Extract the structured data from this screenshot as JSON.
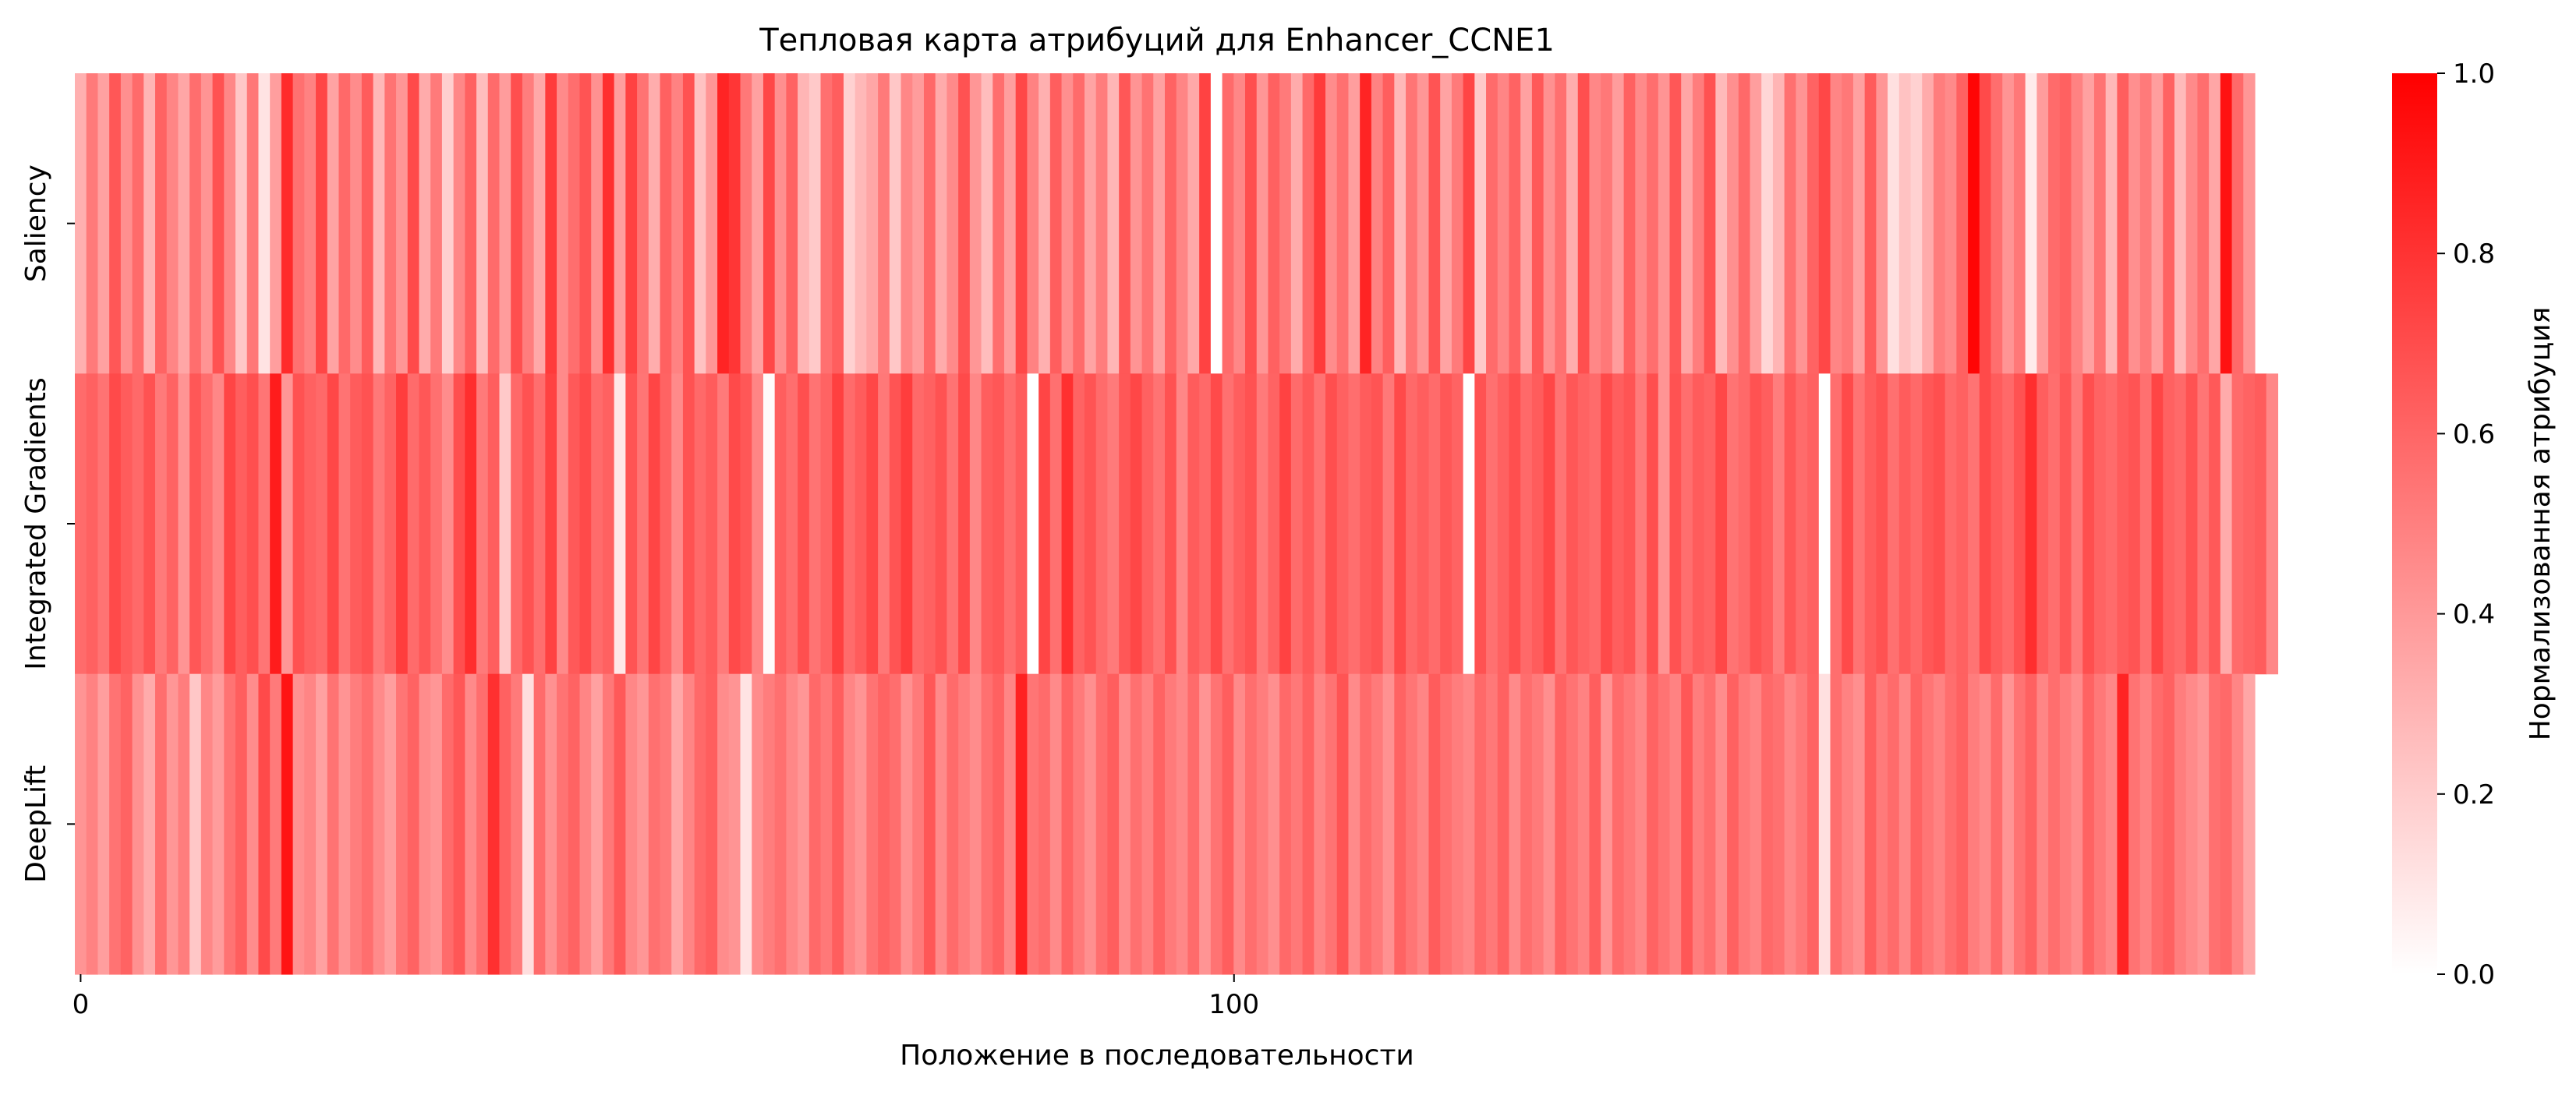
{
  "chart_data": {
    "type": "heatmap",
    "title": "Тепловая карта атрибуций для Enhancer_CCNE1",
    "xlabel": "Положение в последовательности",
    "ylabel": "",
    "rows": [
      "Saliency",
      "Integrated Gradients",
      "DeepLift"
    ],
    "x_range": [
      0,
      189
    ],
    "x_ticks": [
      0,
      100
    ],
    "x_tick_labels": [
      "0",
      "100"
    ],
    "colorbar": {
      "label": "Нормализованная атрибуция",
      "range": [
        0.0,
        1.0
      ],
      "ticks": [
        "0.0",
        "0.2",
        "0.4",
        "0.6",
        "0.8",
        "1.0"
      ],
      "color_low": "#ffffff",
      "color_high": "#ff0000"
    },
    "values": [
      [
        0.31,
        0.52,
        0.37,
        0.66,
        0.44,
        0.58,
        0.29,
        0.61,
        0.48,
        0.35,
        0.57,
        0.42,
        0.68,
        0.47,
        0.22,
        0.53,
        0.11,
        0.38,
        0.83,
        0.56,
        0.49,
        0.73,
        0.36,
        0.59,
        0.45,
        0.64,
        0.28,
        0.55,
        0.41,
        0.71,
        0.33,
        0.52,
        0.19,
        0.47,
        0.62,
        0.26,
        0.58,
        0.39,
        0.69,
        0.51,
        0.34,
        0.77,
        0.46,
        0.57,
        0.67,
        0.43,
        0.81,
        0.38,
        0.74,
        0.55,
        0.32,
        0.62,
        0.49,
        0.68,
        0.24,
        0.41,
        0.86,
        0.79,
        0.53,
        0.37,
        0.72,
        0.44,
        0.61,
        0.29,
        0.21,
        0.56,
        0.63,
        0.18,
        0.28,
        0.35,
        0.52,
        0.22,
        0.47,
        0.39,
        0.59,
        0.33,
        0.46,
        0.68,
        0.41,
        0.26,
        0.57,
        0.38,
        0.72,
        0.49,
        0.31,
        0.63,
        0.44,
        0.58,
        0.36,
        0.51,
        0.29,
        0.66,
        0.42,
        0.55,
        0.37,
        0.61,
        0.48,
        0.34,
        0.74,
        0.0,
        0.58,
        0.47,
        0.69,
        0.41,
        0.62,
        0.52,
        0.33,
        0.59,
        0.77,
        0.45,
        0.56,
        0.38,
        0.86,
        0.49,
        0.63,
        0.28,
        0.54,
        0.41,
        0.67,
        0.36,
        0.52,
        0.73,
        0.21,
        0.58,
        0.48,
        0.61,
        0.37,
        0.65,
        0.43,
        0.56,
        0.32,
        0.69,
        0.47,
        0.53,
        0.39,
        0.62,
        0.46,
        0.57,
        0.42,
        0.66,
        0.35,
        0.51,
        0.68,
        0.27,
        0.44,
        0.59,
        0.38,
        0.16,
        0.29,
        0.56,
        0.42,
        0.61,
        0.72,
        0.48,
        0.53,
        0.37,
        0.64,
        0.41,
        0.12,
        0.24,
        0.18,
        0.33,
        0.51,
        0.46,
        0.62,
        0.98,
        0.71,
        0.57,
        0.42,
        0.53,
        0.08,
        0.39,
        0.58,
        0.62,
        0.49,
        0.37,
        0.55,
        0.28,
        0.63,
        0.44,
        0.52,
        0.38,
        0.61,
        0.27,
        0.46,
        0.57,
        0.35,
        0.93,
        0.59,
        0.41
      ],
      [
        0.58,
        0.62,
        0.55,
        0.71,
        0.64,
        0.59,
        0.68,
        0.52,
        0.61,
        0.42,
        0.66,
        0.57,
        0.47,
        0.73,
        0.63,
        0.69,
        0.54,
        0.89,
        0.41,
        0.68,
        0.62,
        0.59,
        0.72,
        0.55,
        0.64,
        0.68,
        0.53,
        0.61,
        0.76,
        0.58,
        0.66,
        0.56,
        0.45,
        0.69,
        0.82,
        0.52,
        0.63,
        0.21,
        0.59,
        0.68,
        0.57,
        0.74,
        0.46,
        0.65,
        0.71,
        0.58,
        0.62,
        0.09,
        0.67,
        0.54,
        0.73,
        0.61,
        0.46,
        0.68,
        0.59,
        0.64,
        0.52,
        0.71,
        0.66,
        0.48,
        0.02,
        0.63,
        0.57,
        0.69,
        0.55,
        0.61,
        0.75,
        0.58,
        0.64,
        0.72,
        0.53,
        0.67,
        0.76,
        0.59,
        0.62,
        0.68,
        0.55,
        0.71,
        0.47,
        0.63,
        0.66,
        0.57,
        0.64,
        0.0,
        0.73,
        0.56,
        0.81,
        0.61,
        0.67,
        0.58,
        0.52,
        0.66,
        0.72,
        0.62,
        0.55,
        0.68,
        0.47,
        0.64,
        0.59,
        0.71,
        0.56,
        0.63,
        0.68,
        0.52,
        0.61,
        0.74,
        0.58,
        0.65,
        0.55,
        0.69,
        0.62,
        0.57,
        0.64,
        0.67,
        0.53,
        0.71,
        0.59,
        0.63,
        0.58,
        0.66,
        0.61,
        0.0,
        0.68,
        0.56,
        0.62,
        0.69,
        0.59,
        0.64,
        0.72,
        0.55,
        0.66,
        0.61,
        0.58,
        0.71,
        0.63,
        0.67,
        0.52,
        0.69,
        0.42,
        0.68,
        0.57,
        0.64,
        0.61,
        0.72,
        0.55,
        0.59,
        0.68,
        0.63,
        0.51,
        0.66,
        0.58,
        0.62,
        0.0,
        0.57,
        0.71,
        0.55,
        0.63,
        0.68,
        0.56,
        0.64,
        0.59,
        0.66,
        0.69,
        0.58,
        0.62,
        0.55,
        0.71,
        0.64,
        0.59,
        0.68,
        0.82,
        0.63,
        0.57,
        0.66,
        0.52,
        0.69,
        0.61,
        0.58,
        0.64,
        0.67,
        0.56,
        0.73,
        0.62,
        0.59,
        0.68,
        0.54,
        0.65,
        0.33,
        0.58,
        0.61,
        0.64,
        0.47
      ],
      [
        0.42,
        0.49,
        0.38,
        0.55,
        0.61,
        0.43,
        0.33,
        0.57,
        0.41,
        0.51,
        0.22,
        0.47,
        0.39,
        0.55,
        0.63,
        0.45,
        0.71,
        0.52,
        0.92,
        0.43,
        0.48,
        0.37,
        0.55,
        0.42,
        0.51,
        0.57,
        0.46,
        0.38,
        0.54,
        0.61,
        0.45,
        0.41,
        0.58,
        0.66,
        0.46,
        0.57,
        0.81,
        0.62,
        0.52,
        0.13,
        0.58,
        0.43,
        0.55,
        0.61,
        0.48,
        0.37,
        0.53,
        0.65,
        0.47,
        0.41,
        0.56,
        0.52,
        0.34,
        0.48,
        0.59,
        0.63,
        0.45,
        0.42,
        0.11,
        0.45,
        0.51,
        0.56,
        0.47,
        0.41,
        0.59,
        0.53,
        0.63,
        0.48,
        0.42,
        0.55,
        0.61,
        0.57,
        0.43,
        0.52,
        0.66,
        0.46,
        0.58,
        0.51,
        0.45,
        0.56,
        0.62,
        0.48,
        0.87,
        0.54,
        0.58,
        0.46,
        0.61,
        0.52,
        0.44,
        0.57,
        0.63,
        0.45,
        0.56,
        0.49,
        0.61,
        0.52,
        0.47,
        0.58,
        0.42,
        0.55,
        0.63,
        0.46,
        0.57,
        0.51,
        0.44,
        0.59,
        0.53,
        0.62,
        0.48,
        0.55,
        0.67,
        0.46,
        0.58,
        0.52,
        0.43,
        0.61,
        0.54,
        0.48,
        0.64,
        0.56,
        0.51,
        0.47,
        0.59,
        0.53,
        0.62,
        0.46,
        0.57,
        0.52,
        0.44,
        0.61,
        0.55,
        0.49,
        0.63,
        0.42,
        0.58,
        0.53,
        0.47,
        0.61,
        0.55,
        0.49,
        0.66,
        0.51,
        0.57,
        0.45,
        0.62,
        0.52,
        0.48,
        0.59,
        0.56,
        0.47,
        0.53,
        0.61,
        0.12,
        0.57,
        0.49,
        0.44,
        0.63,
        0.52,
        0.58,
        0.47,
        0.61,
        0.54,
        0.49,
        0.57,
        0.62,
        0.51,
        0.46,
        0.58,
        0.42,
        0.55,
        0.62,
        0.48,
        0.57,
        0.51,
        0.45,
        0.61,
        0.53,
        0.47,
        0.86,
        0.55,
        0.49,
        0.58,
        0.62,
        0.51,
        0.46,
        0.41,
        0.56,
        0.59,
        0.48,
        0.35
      ]
    ]
  }
}
